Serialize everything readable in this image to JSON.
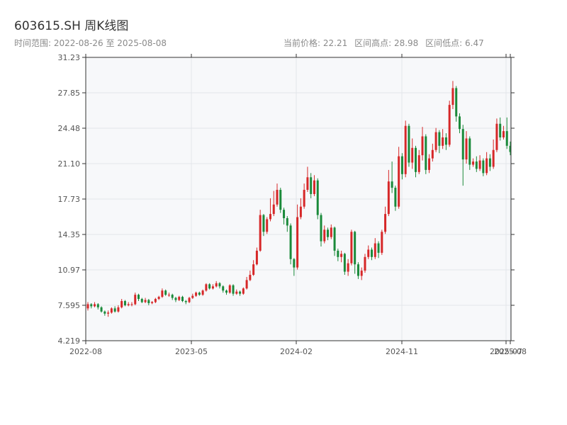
{
  "header": {
    "title": "603615.SH 周K线图",
    "range_label": "时间范围:",
    "range_start": "2022-08-26",
    "range_to": "至",
    "range_end": "2025-08-08",
    "current_label": "当前价格:",
    "current_value": "22.21",
    "high_label": "区间高点:",
    "high_value": "28.98",
    "low_label": "区间低点:",
    "low_value": "6.47"
  },
  "colors": {
    "up": "#d62728",
    "down": "#1a8a3a",
    "plot_bg": "#f7f8fa",
    "grid": "#e3e6ea",
    "axis": "#333333"
  },
  "chart_data": {
    "type": "candlestick",
    "title": "603615.SH 周K线图",
    "ylim": [
      4.219,
      31.23
    ],
    "y_ticks": [
      "4.219",
      "7.595",
      "10.97",
      "14.35",
      "17.73",
      "21.10",
      "24.48",
      "27.85",
      "31.23"
    ],
    "x_ticks": [
      "2022-08",
      "2023-05",
      "2024-02",
      "2024-11",
      "2025-07",
      "2025-08"
    ],
    "grid": true,
    "volume_summary": {
      "current": 22.21,
      "high": 28.98,
      "low": 6.47
    },
    "weeks": [
      [
        7.3,
        7.7,
        7.9,
        7.1
      ],
      [
        7.7,
        7.5,
        7.8,
        7.3
      ],
      [
        7.5,
        7.7,
        7.9,
        7.4
      ],
      [
        7.7,
        7.4,
        7.8,
        7.2
      ],
      [
        7.4,
        7.0,
        7.5,
        6.9
      ],
      [
        7.0,
        6.8,
        7.1,
        6.6
      ],
      [
        6.8,
        6.9,
        7.1,
        6.5
      ],
      [
        6.9,
        7.3,
        7.4,
        6.8
      ],
      [
        7.3,
        7.0,
        7.5,
        6.9
      ],
      [
        7.0,
        7.4,
        7.6,
        6.9
      ],
      [
        7.4,
        8.0,
        8.2,
        7.3
      ],
      [
        8.0,
        7.6,
        8.1,
        7.5
      ],
      [
        7.6,
        7.7,
        7.9,
        7.5
      ],
      [
        7.7,
        7.7,
        7.9,
        7.5
      ],
      [
        7.7,
        8.6,
        8.8,
        7.6
      ],
      [
        8.6,
        8.2,
        8.7,
        8.0
      ],
      [
        8.2,
        7.9,
        8.3,
        7.8
      ],
      [
        7.9,
        8.1,
        8.3,
        7.8
      ],
      [
        8.1,
        7.8,
        8.2,
        7.6
      ],
      [
        7.8,
        7.9,
        8.0,
        7.7
      ],
      [
        7.9,
        8.2,
        8.3,
        7.8
      ],
      [
        8.2,
        8.4,
        8.5,
        8.1
      ],
      [
        8.4,
        9.0,
        9.2,
        8.3
      ],
      [
        9.0,
        8.6,
        9.1,
        8.5
      ],
      [
        8.6,
        8.6,
        8.8,
        8.4
      ],
      [
        8.6,
        8.3,
        8.7,
        8.1
      ],
      [
        8.3,
        8.1,
        8.4,
        7.9
      ],
      [
        8.1,
        8.4,
        8.5,
        8.0
      ],
      [
        8.4,
        8.0,
        8.5,
        7.9
      ],
      [
        8.0,
        7.9,
        8.1,
        7.7
      ],
      [
        7.9,
        8.3,
        8.4,
        7.8
      ],
      [
        8.3,
        8.5,
        8.7,
        8.2
      ],
      [
        8.5,
        8.8,
        8.9,
        8.4
      ],
      [
        8.8,
        8.6,
        8.9,
        8.5
      ],
      [
        8.6,
        9.0,
        9.1,
        8.5
      ],
      [
        9.0,
        9.6,
        9.7,
        8.9
      ],
      [
        9.6,
        9.2,
        9.7,
        9.1
      ],
      [
        9.2,
        9.4,
        9.6,
        9.1
      ],
      [
        9.4,
        9.7,
        9.9,
        9.3
      ],
      [
        9.7,
        9.4,
        9.8,
        9.2
      ],
      [
        9.4,
        9.0,
        9.5,
        8.8
      ],
      [
        9.0,
        8.8,
        9.1,
        8.6
      ],
      [
        8.8,
        9.5,
        9.6,
        8.7
      ],
      [
        9.5,
        8.7,
        9.6,
        8.5
      ],
      [
        8.7,
        8.9,
        9.1,
        8.6
      ],
      [
        8.9,
        8.7,
        9.0,
        8.5
      ],
      [
        8.7,
        9.2,
        9.3,
        8.6
      ],
      [
        9.2,
        10.0,
        10.3,
        9.1
      ],
      [
        10.0,
        10.5,
        10.9,
        9.9
      ],
      [
        10.5,
        11.5,
        11.9,
        10.4
      ],
      [
        11.5,
        12.8,
        13.1,
        11.4
      ],
      [
        12.8,
        16.2,
        16.7,
        12.7
      ],
      [
        16.2,
        14.6,
        16.3,
        14.2
      ],
      [
        14.6,
        15.8,
        16.0,
        14.4
      ],
      [
        15.8,
        16.3,
        17.8,
        15.6
      ],
      [
        16.3,
        17.2,
        18.5,
        16.1
      ],
      [
        17.2,
        18.6,
        19.2,
        17.0
      ],
      [
        18.6,
        16.7,
        18.8,
        16.4
      ],
      [
        16.7,
        15.9,
        16.9,
        15.3
      ],
      [
        15.9,
        15.2,
        16.1,
        14.6
      ],
      [
        15.2,
        12.0,
        15.4,
        11.5
      ],
      [
        12.0,
        11.2,
        12.1,
        10.4
      ],
      [
        11.2,
        16.0,
        17.2,
        11.0
      ],
      [
        16.0,
        17.0,
        17.8,
        15.8
      ],
      [
        17.0,
        18.6,
        19.2,
        16.8
      ],
      [
        18.6,
        19.8,
        20.8,
        18.4
      ],
      [
        19.8,
        18.2,
        20.2,
        17.8
      ],
      [
        18.2,
        19.5,
        20.0,
        18.0
      ],
      [
        19.5,
        16.2,
        19.7,
        15.8
      ],
      [
        16.2,
        13.7,
        16.4,
        13.2
      ],
      [
        13.7,
        14.8,
        15.2,
        13.5
      ],
      [
        14.8,
        14.1,
        15.0,
        13.8
      ],
      [
        14.1,
        15.0,
        15.3,
        13.9
      ],
      [
        15.0,
        12.8,
        15.1,
        12.3
      ],
      [
        12.8,
        12.2,
        13.0,
        11.8
      ],
      [
        12.2,
        12.5,
        12.8,
        11.7
      ],
      [
        12.5,
        10.8,
        12.6,
        10.5
      ],
      [
        10.8,
        11.6,
        12.0,
        10.4
      ],
      [
        11.6,
        14.6,
        14.8,
        11.4
      ],
      [
        14.6,
        11.5,
        14.7,
        10.6
      ],
      [
        11.5,
        10.4,
        11.7,
        10.1
      ],
      [
        10.4,
        10.9,
        11.2,
        10.0
      ],
      [
        10.9,
        12.2,
        12.5,
        10.7
      ],
      [
        12.2,
        12.9,
        13.3,
        12.0
      ],
      [
        12.9,
        12.2,
        13.1,
        11.9
      ],
      [
        12.2,
        13.5,
        14.0,
        12.0
      ],
      [
        13.5,
        12.6,
        13.7,
        12.1
      ],
      [
        12.6,
        14.6,
        14.8,
        12.4
      ],
      [
        14.6,
        16.3,
        17.0,
        14.4
      ],
      [
        16.3,
        19.4,
        20.5,
        16.1
      ],
      [
        19.4,
        18.8,
        21.3,
        18.3
      ],
      [
        18.8,
        17.0,
        19.0,
        16.6
      ],
      [
        17.0,
        21.8,
        22.7,
        16.8
      ],
      [
        21.8,
        20.1,
        22.1,
        19.6
      ],
      [
        20.1,
        24.7,
        25.2,
        19.8
      ],
      [
        24.7,
        21.2,
        24.9,
        20.8
      ],
      [
        21.2,
        22.6,
        23.5,
        20.6
      ],
      [
        22.6,
        20.3,
        22.8,
        19.8
      ],
      [
        20.3,
        21.9,
        22.4,
        20.1
      ],
      [
        21.9,
        23.7,
        24.6,
        21.4
      ],
      [
        23.7,
        20.5,
        23.9,
        20.1
      ],
      [
        20.5,
        21.6,
        22.0,
        20.2
      ],
      [
        21.6,
        22.4,
        23.0,
        21.3
      ],
      [
        22.4,
        24.1,
        24.5,
        22.2
      ],
      [
        24.1,
        22.8,
        24.3,
        22.1
      ],
      [
        22.8,
        23.6,
        24.4,
        22.5
      ],
      [
        23.6,
        22.9,
        24.0,
        22.4
      ],
      [
        22.9,
        26.7,
        27.1,
        22.7
      ],
      [
        26.7,
        28.3,
        28.98,
        26.3
      ],
      [
        28.3,
        25.6,
        28.5,
        25.1
      ],
      [
        25.6,
        24.4,
        25.9,
        24.0
      ],
      [
        24.4,
        21.5,
        24.8,
        19.0
      ],
      [
        21.5,
        23.5,
        24.2,
        21.1
      ],
      [
        23.5,
        21.0,
        23.7,
        20.5
      ],
      [
        21.0,
        21.3,
        21.6,
        20.8
      ],
      [
        21.3,
        20.6,
        21.8,
        20.3
      ],
      [
        20.6,
        21.4,
        21.9,
        20.4
      ],
      [
        21.4,
        20.2,
        21.6,
        19.9
      ],
      [
        20.2,
        21.6,
        22.2,
        20.0
      ],
      [
        21.6,
        20.8,
        22.0,
        20.4
      ],
      [
        20.8,
        22.4,
        23.4,
        20.6
      ],
      [
        22.4,
        24.9,
        25.4,
        22.2
      ],
      [
        24.9,
        23.6,
        25.5,
        23.3
      ],
      [
        23.6,
        24.2,
        24.7,
        23.4
      ],
      [
        24.2,
        22.8,
        25.5,
        22.5
      ],
      [
        22.8,
        22.21,
        23.2,
        21.9
      ]
    ]
  }
}
